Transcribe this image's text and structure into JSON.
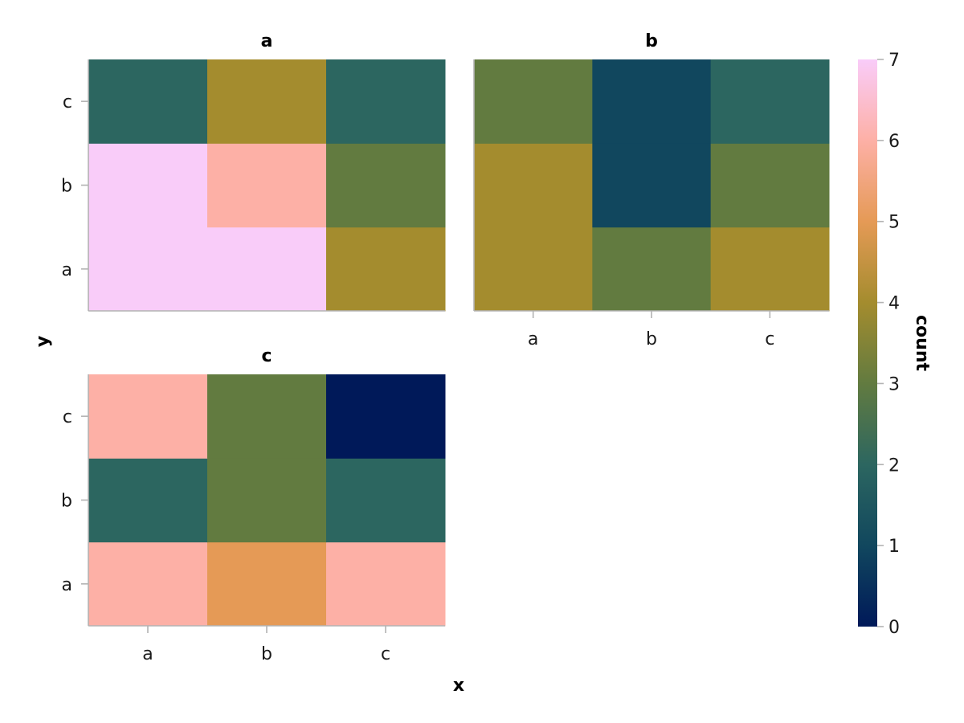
{
  "chart_data": {
    "type": "heatmap",
    "xlabel": "x",
    "ylabel": "y",
    "x_categories": [
      "a",
      "b",
      "c"
    ],
    "y_categories": [
      "a",
      "b",
      "c"
    ],
    "panels": [
      {
        "title": "a",
        "values": [
          [
            7,
            7,
            4
          ],
          [
            7,
            6,
            3
          ],
          [
            2,
            4,
            2
          ]
        ]
      },
      {
        "title": "b",
        "values": [
          [
            4,
            3,
            4
          ],
          [
            4,
            1,
            3
          ],
          [
            3,
            1,
            2
          ]
        ]
      },
      {
        "title": "c",
        "values": [
          [
            6,
            5,
            6
          ],
          [
            2,
            3,
            2
          ],
          [
            6,
            3,
            0
          ]
        ]
      }
    ],
    "colorbar": {
      "label": "count",
      "range": [
        0,
        7
      ],
      "ticks": [
        0,
        1,
        2,
        3,
        4,
        5,
        6,
        7
      ],
      "colors": [
        "#001959",
        "#11475e",
        "#2c6660",
        "#627b40",
        "#a48c2e",
        "#e59a56",
        "#fdb0a6",
        "#f9ccf9"
      ]
    }
  }
}
